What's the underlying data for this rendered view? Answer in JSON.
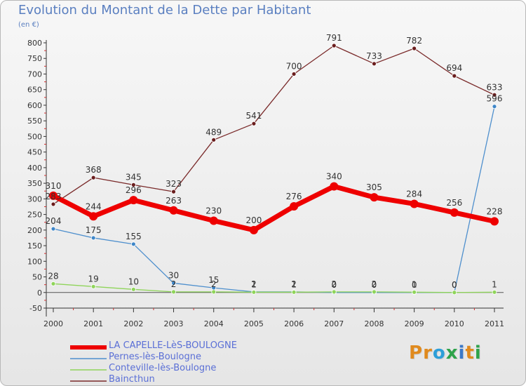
{
  "header": {
    "title": "Evolution du Montant de la Dette par Habitant",
    "unit": "(en €)"
  },
  "logo": {
    "text": "Proxiti",
    "letter_colors": [
      "#e08a1e",
      "#e08a1e",
      "#2e9fd8",
      "#2ea34a",
      "#3a78c8",
      "#e08a1e",
      "#2ea34a"
    ]
  },
  "chart_data": {
    "type": "line",
    "title": "Evolution du Montant de la Dette par Habitant",
    "ylabel": "(en €)",
    "xlabel": "",
    "ylim": [
      -50,
      800
    ],
    "yticks": [
      -50,
      0,
      50,
      100,
      150,
      200,
      250,
      300,
      350,
      400,
      450,
      500,
      550,
      600,
      650,
      700,
      750,
      800
    ],
    "grid": false,
    "legend_position": "bottom-left",
    "categories": [
      "2000",
      "2001",
      "2002",
      "2003",
      "2004",
      "2005",
      "2006",
      "2007",
      "2008",
      "2009",
      "2010",
      "2011"
    ],
    "series": [
      {
        "name": "LA CAPELLE-LèS-BOULOGNE",
        "color": "#ee0000",
        "values": [
          310,
          244,
          296,
          263,
          230,
          200,
          276,
          340,
          305,
          284,
          256,
          228
        ]
      },
      {
        "name": "Pernes-lès-Boulogne",
        "color": "#4e8fcd",
        "values": [
          204,
          175,
          155,
          30,
          15,
          2,
          2,
          0,
          0,
          0,
          0,
          596
        ]
      },
      {
        "name": "Conteville-lès-Boulogne",
        "color": "#8fd45a",
        "values": [
          28,
          19,
          10,
          2,
          2,
          1,
          1,
          2,
          2,
          1,
          0,
          1
        ]
      },
      {
        "name": "Baincthun",
        "color": "#7a2a2a",
        "values": [
          283,
          368,
          345,
          323,
          489,
          541,
          700,
          791,
          733,
          782,
          694,
          633
        ]
      }
    ]
  }
}
